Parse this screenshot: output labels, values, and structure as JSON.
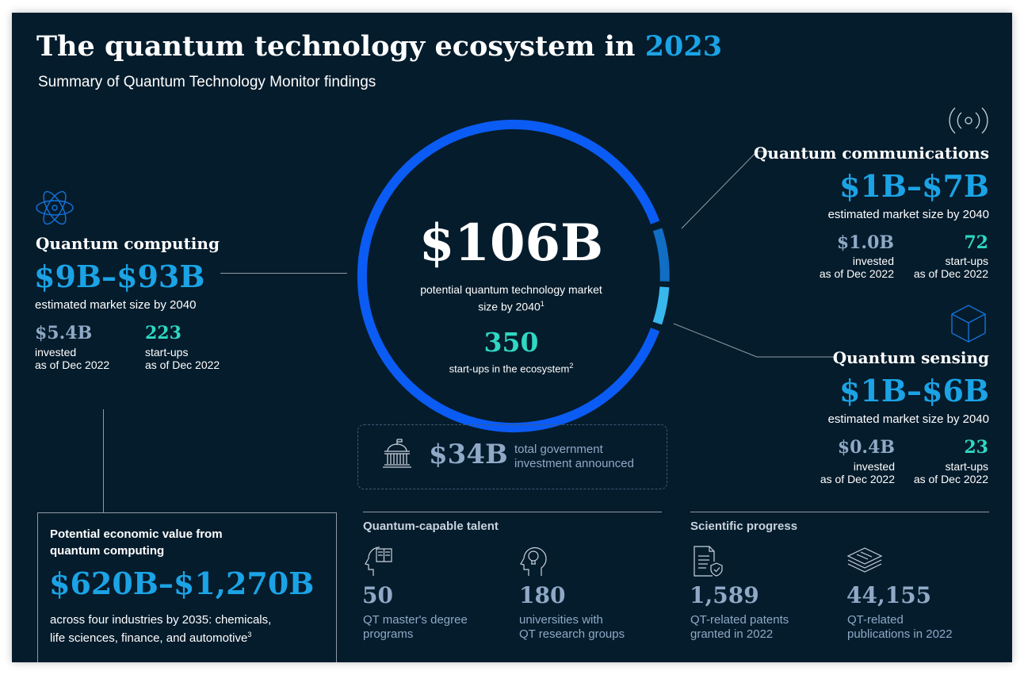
{
  "title": {
    "prefix": "The quantum technology ecosystem in ",
    "year": "2023"
  },
  "subtitle": "Summary of Quantum Technology Monitor findings",
  "center": {
    "value": "$106B",
    "caption_line1": "potential quantum technology market",
    "caption_line2": "size by 2040",
    "caption_sup": "1",
    "startups_value": "350",
    "startups_caption": "start-ups in the ecosystem",
    "startups_sup": "2"
  },
  "government": {
    "value": "$34B",
    "line1": "total government",
    "line2": "investment announced",
    "icon": "government-building-icon"
  },
  "computing": {
    "title": "Quantum computing",
    "range": "$9B–$93B",
    "range_caption": "estimated market size by 2040",
    "invested_value": "$5.4B",
    "invested_line1": "invested",
    "invested_line2": "as of Dec 2022",
    "startups_value": "223",
    "startups_line1": "start-ups",
    "startups_line2": "as of Dec 2022",
    "icon": "atom-icon"
  },
  "communications": {
    "title": "Quantum communications",
    "range": "$1B–$7B",
    "range_caption": "estimated market size by 2040",
    "invested_value": "$1.0B",
    "invested_line1": "invested",
    "invested_line2": "as of Dec 2022",
    "startups_value": "72",
    "startups_line1": "start-ups",
    "startups_line2": "as of Dec 2022",
    "icon": "signal-waves-icon"
  },
  "sensing": {
    "title": "Quantum sensing",
    "range": "$1B–$6B",
    "range_caption": "estimated market size by 2040",
    "invested_value": "$0.4B",
    "invested_line1": "invested",
    "invested_line2": "as of Dec 2022",
    "startups_value": "23",
    "startups_line1": "start-ups",
    "startups_line2": "as of Dec 2022",
    "icon": "cube-icon"
  },
  "economic": {
    "title_line1": "Potential economic value from",
    "title_line2": "quantum computing",
    "value": "$620B–$1,270B",
    "caption_line1": "across four industries by 2035: chemicals,",
    "caption_line2": "life sciences, finance, and automotive",
    "caption_sup": "3"
  },
  "talent": {
    "heading": "Quantum-capable talent",
    "items": [
      {
        "value": "50",
        "line1": "QT master's degree",
        "line2": "programs",
        "icon": "head-book-icon"
      },
      {
        "value": "180",
        "line1": "universities with",
        "line2": "QT research groups",
        "icon": "head-lightbulb-icon"
      }
    ]
  },
  "science": {
    "heading": "Scientific progress",
    "items": [
      {
        "value": "1,589",
        "line1": "QT-related patents",
        "line2": "granted in 2022",
        "icon": "patent-document-icon"
      },
      {
        "value": "44,155",
        "line1": "QT-related",
        "line2": "publications in 2022",
        "icon": "publications-stack-icon"
      }
    ]
  },
  "colors": {
    "background": "#051c2c",
    "ring_main": "#0b5cf4",
    "accent_cyan": "#1ba3e6",
    "accent_teal": "#2fd8c2",
    "muted": "#8fa9c6"
  }
}
